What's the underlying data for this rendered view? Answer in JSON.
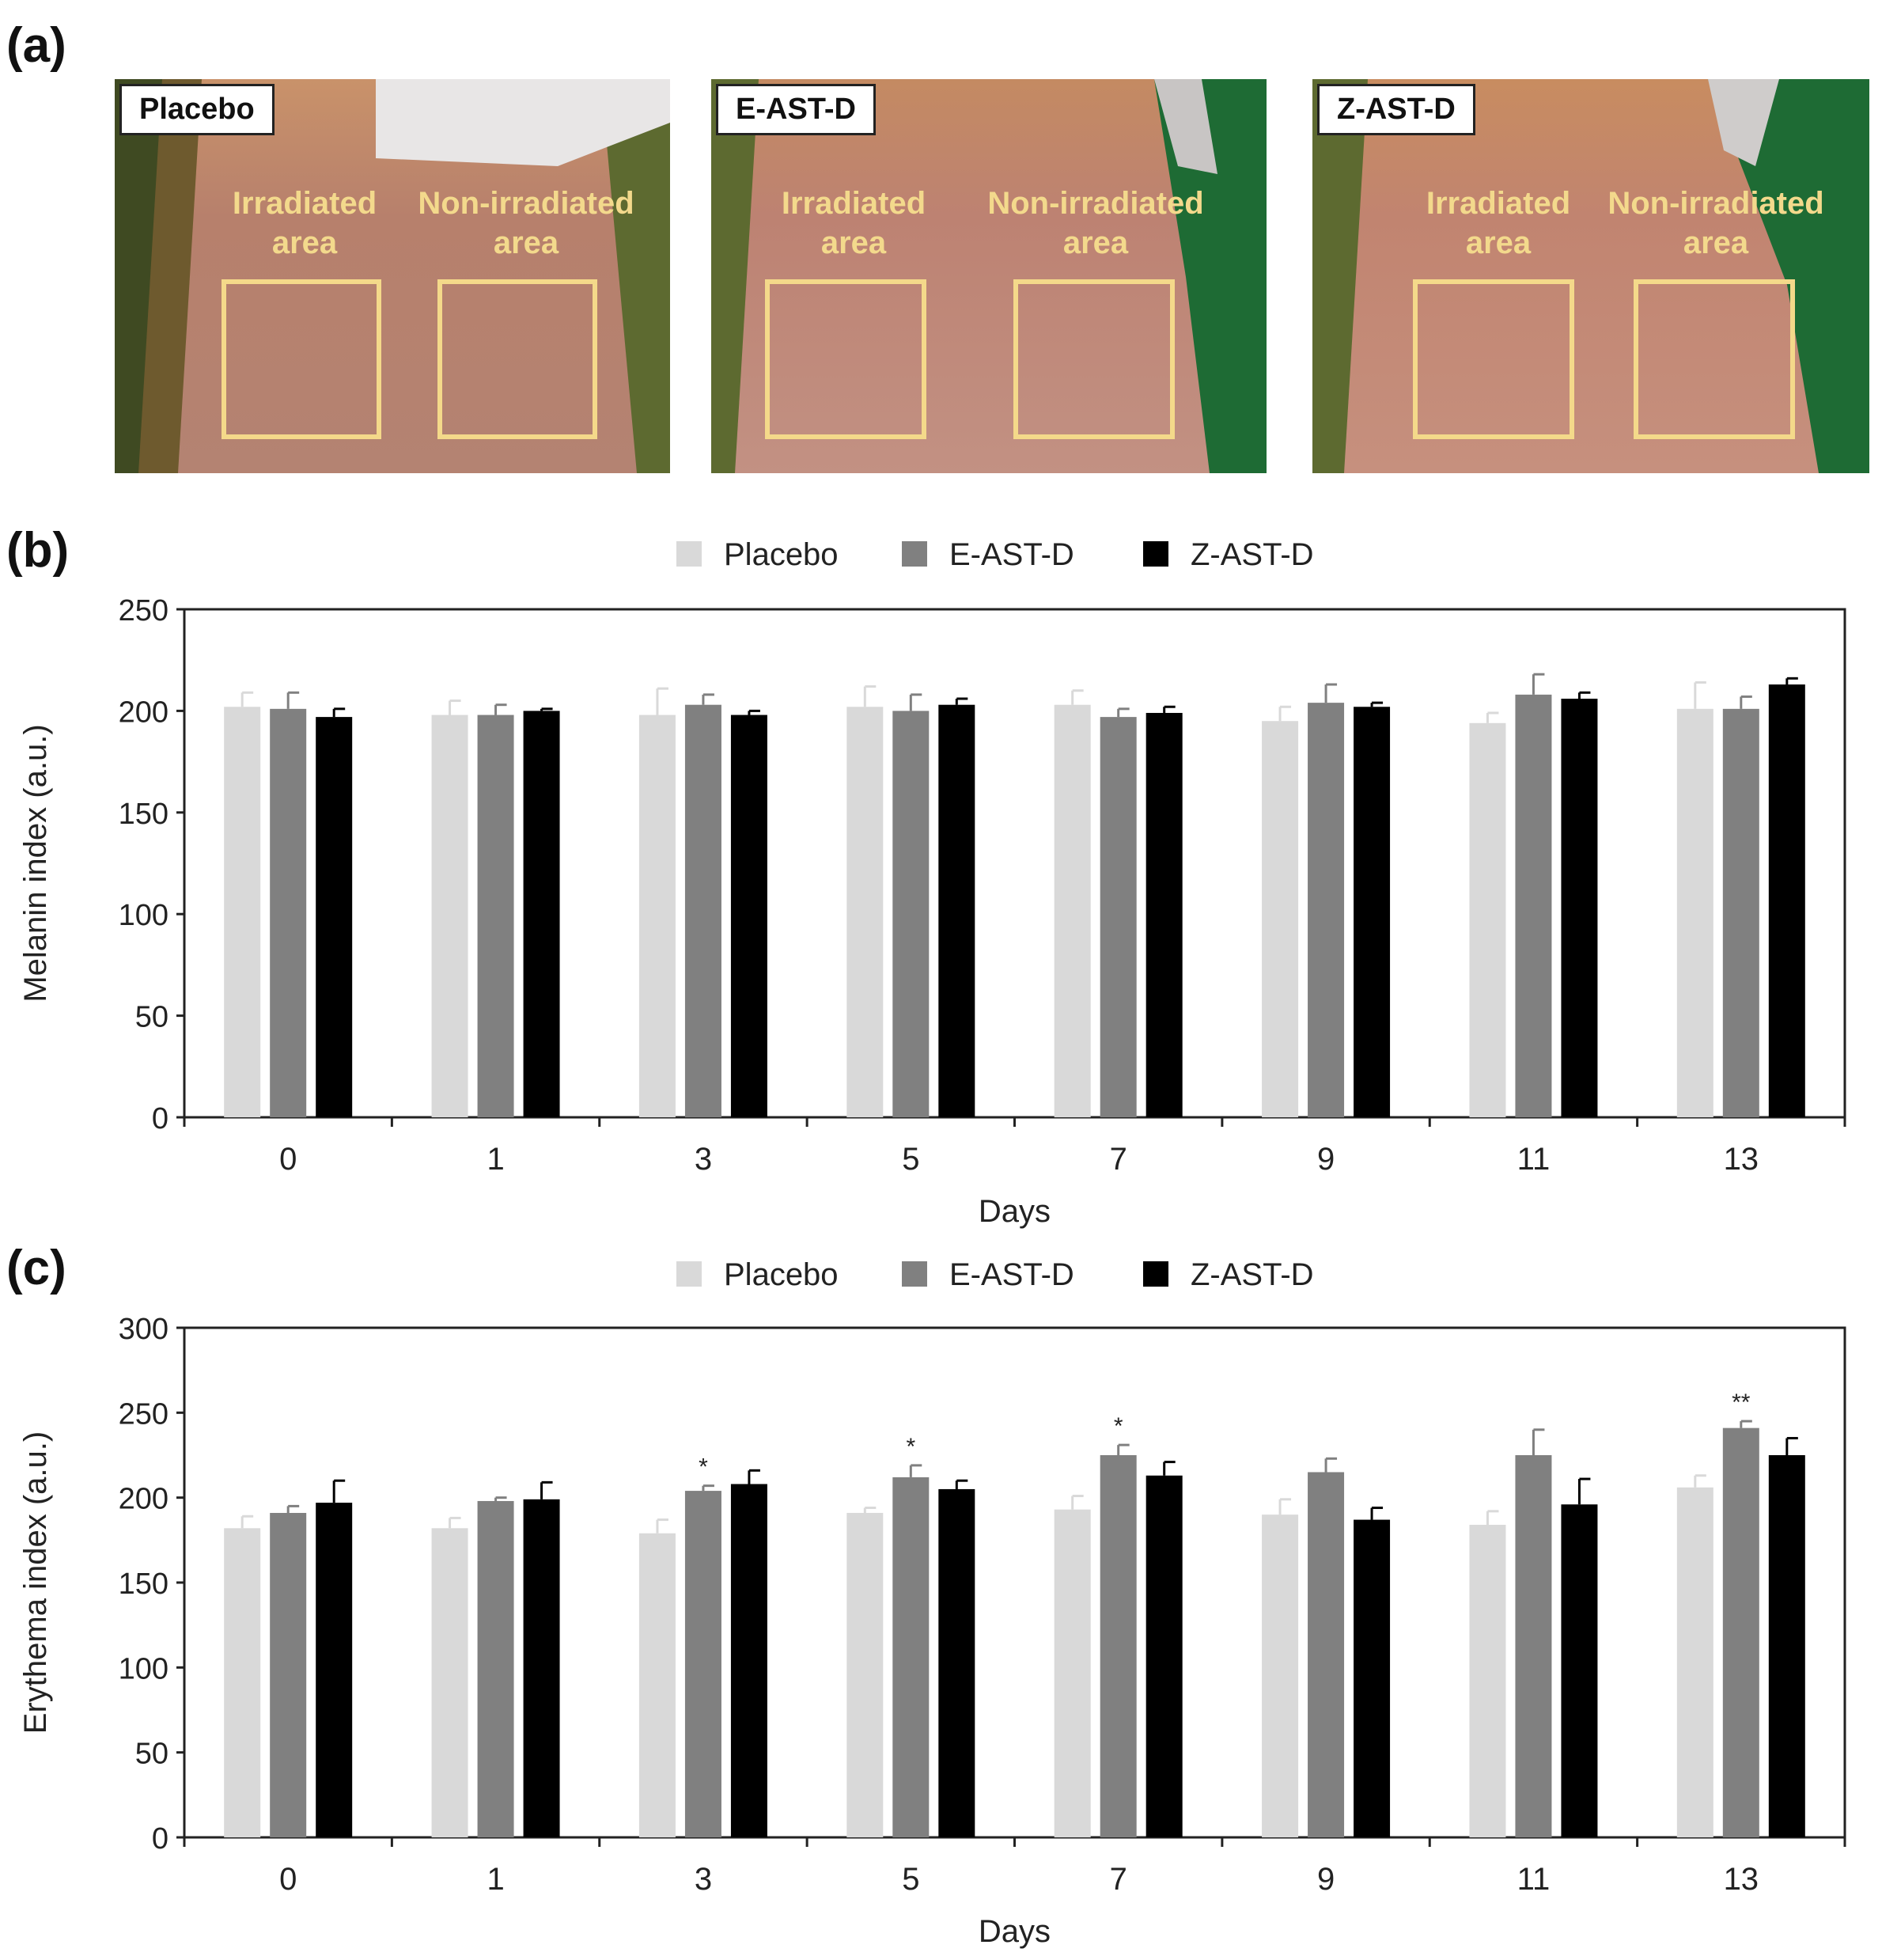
{
  "panel_labels": {
    "a": "(a)",
    "b": "(b)",
    "c": "(c)"
  },
  "photos": [
    {
      "title": "Placebo",
      "irradiated_label": [
        "Irradiated",
        "area"
      ],
      "non_irradiated_label": [
        "Non-irradiated",
        "area"
      ]
    },
    {
      "title": "E-AST-D",
      "irradiated_label": [
        "Irradiated",
        "area"
      ],
      "non_irradiated_label": [
        "Non-irradiated",
        "area"
      ]
    },
    {
      "title": "Z-AST-D",
      "irradiated_label": [
        "Irradiated",
        "area"
      ],
      "non_irradiated_label": [
        "Non-irradiated",
        "area"
      ]
    }
  ],
  "colors": {
    "Placebo": "#d9d9d9",
    "E-AST-D": "#808080",
    "Z-AST-D": "#000000",
    "photo_skin": "#b98570",
    "photo_background": "#1e6b34",
    "box": "#f4d98a"
  },
  "chart_data": [
    {
      "type": "bar",
      "xlabel": "Days",
      "ylabel": "Melanin index (a.u.)",
      "ylim": [
        0,
        250
      ],
      "yticks": [
        0,
        50,
        100,
        150,
        200,
        250
      ],
      "legend_position": "top-center",
      "categories": [
        "0",
        "1",
        "3",
        "5",
        "7",
        "9",
        "11",
        "13"
      ],
      "series": [
        {
          "name": "Placebo",
          "values": [
            202,
            198,
            198,
            202,
            203,
            195,
            194,
            201
          ],
          "errors": [
            7,
            7,
            13,
            10,
            7,
            7,
            5,
            13
          ],
          "significance": [
            "",
            "",
            "",
            "",
            "",
            "",
            "",
            ""
          ]
        },
        {
          "name": "E-AST-D",
          "values": [
            201,
            198,
            203,
            200,
            197,
            204,
            208,
            201
          ],
          "errors": [
            8,
            5,
            5,
            8,
            4,
            9,
            10,
            6
          ],
          "significance": [
            "",
            "",
            "",
            "",
            "",
            "",
            "",
            ""
          ]
        },
        {
          "name": "Z-AST-D",
          "values": [
            197,
            200,
            198,
            203,
            199,
            202,
            206,
            213
          ],
          "errors": [
            4,
            1,
            2,
            3,
            3,
            2,
            3,
            3
          ],
          "significance": [
            "",
            "",
            "",
            "",
            "",
            "",
            "",
            ""
          ]
        }
      ]
    },
    {
      "type": "bar",
      "xlabel": "Days",
      "ylabel": "Erythema index (a.u.)",
      "ylim": [
        0,
        300
      ],
      "yticks": [
        0,
        50,
        100,
        150,
        200,
        250,
        300
      ],
      "legend_position": "top-center",
      "categories": [
        "0",
        "1",
        "3",
        "5",
        "7",
        "9",
        "11",
        "13"
      ],
      "series": [
        {
          "name": "Placebo",
          "values": [
            182,
            182,
            179,
            191,
            193,
            190,
            184,
            206
          ],
          "errors": [
            7,
            6,
            8,
            3,
            8,
            9,
            8,
            7
          ],
          "significance": [
            "",
            "",
            "",
            "",
            "",
            "",
            "",
            ""
          ]
        },
        {
          "name": "E-AST-D",
          "values": [
            191,
            198,
            204,
            212,
            225,
            215,
            225,
            241
          ],
          "errors": [
            4,
            2,
            3,
            7,
            6,
            8,
            15,
            4
          ],
          "significance": [
            "",
            "",
            "*",
            "*",
            "*",
            "",
            "",
            "**"
          ]
        },
        {
          "name": "Z-AST-D",
          "values": [
            197,
            199,
            208,
            205,
            213,
            187,
            196,
            225
          ],
          "errors": [
            13,
            10,
            8,
            5,
            8,
            7,
            15,
            10
          ],
          "significance": [
            "",
            "",
            "",
            "",
            "",
            "",
            "",
            ""
          ]
        }
      ]
    }
  ]
}
